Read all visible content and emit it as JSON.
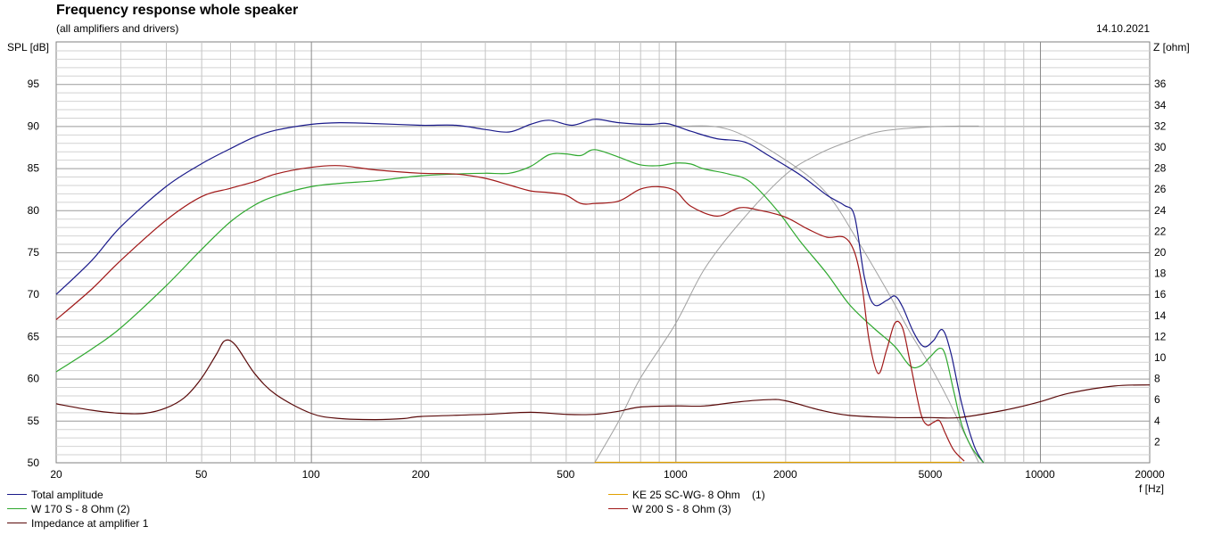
{
  "header": {
    "title": "Frequency response whole speaker",
    "subtitle": "(all amplifiers and drivers)",
    "date": "14.10.2021"
  },
  "colors": {
    "total": "#1a1a8a",
    "woofer170": "#2ea82e",
    "woofer200": "#a01818",
    "tweeter": "#e0a000",
    "impedance": "#5a0a0a",
    "reference": "#a0a0a0"
  },
  "chart_data": {
    "type": "line",
    "title": "Frequency response whole speaker",
    "subtitle": "(all amplifiers and drivers)",
    "xlabel": "f [Hz]",
    "ylabel": "SPL [dB]",
    "y2label": "Z [ohm]",
    "x_scale": "log",
    "xlim": [
      20,
      20000
    ],
    "ylim": [
      50,
      100
    ],
    "y2lim": [
      0,
      40
    ],
    "grid": true,
    "legend_position": "bottom",
    "x_ticks": [
      20,
      50,
      100,
      200,
      500,
      1000,
      2000,
      5000,
      10000,
      20000
    ],
    "y_ticks": [
      50,
      55,
      60,
      65,
      70,
      75,
      80,
      85,
      90,
      95
    ],
    "y2_ticks": [
      2,
      4,
      6,
      8,
      10,
      12,
      14,
      16,
      18,
      20,
      22,
      24,
      26,
      28,
      30,
      32,
      34,
      36
    ],
    "series": [
      {
        "name": "Total amplitude",
        "axis": "left",
        "color": "#1a1a8a",
        "points": [
          [
            20,
            70
          ],
          [
            25,
            74
          ],
          [
            30,
            78
          ],
          [
            40,
            82.8
          ],
          [
            50,
            85.5
          ],
          [
            60,
            87.3
          ],
          [
            70,
            88.7
          ],
          [
            80,
            89.5
          ],
          [
            100,
            90.2
          ],
          [
            120,
            90.4
          ],
          [
            150,
            90.3
          ],
          [
            200,
            90.1
          ],
          [
            250,
            90.1
          ],
          [
            300,
            89.6
          ],
          [
            350,
            89.3
          ],
          [
            400,
            90.2
          ],
          [
            450,
            90.7
          ],
          [
            520,
            90.1
          ],
          [
            600,
            90.8
          ],
          [
            700,
            90.4
          ],
          [
            850,
            90.2
          ],
          [
            950,
            90.3
          ],
          [
            1100,
            89.4
          ],
          [
            1300,
            88.5
          ],
          [
            1550,
            88.1
          ],
          [
            1800,
            86.5
          ],
          [
            2200,
            84.2
          ],
          [
            2600,
            81.8
          ],
          [
            2900,
            80.6
          ],
          [
            3100,
            79.3
          ],
          [
            3300,
            72
          ],
          [
            3500,
            68.8
          ],
          [
            3800,
            69.3
          ],
          [
            4000,
            69.8
          ],
          [
            4200,
            68.5
          ],
          [
            4500,
            65.5
          ],
          [
            4800,
            63.8
          ],
          [
            5100,
            64.5
          ],
          [
            5400,
            65.8
          ],
          [
            5700,
            63
          ],
          [
            6100,
            57
          ],
          [
            6600,
            52
          ],
          [
            7000,
            50
          ]
        ]
      },
      {
        "name": "W 170 S - 8 Ohm (2)",
        "axis": "left",
        "color": "#2ea82e",
        "points": [
          [
            20,
            60.8
          ],
          [
            25,
            63.5
          ],
          [
            30,
            66
          ],
          [
            40,
            71
          ],
          [
            50,
            75.3
          ],
          [
            60,
            78.6
          ],
          [
            70,
            80.6
          ],
          [
            80,
            81.7
          ],
          [
            100,
            82.8
          ],
          [
            120,
            83.2
          ],
          [
            150,
            83.5
          ],
          [
            200,
            84.1
          ],
          [
            250,
            84.3
          ],
          [
            300,
            84.4
          ],
          [
            350,
            84.4
          ],
          [
            400,
            85.2
          ],
          [
            450,
            86.6
          ],
          [
            500,
            86.7
          ],
          [
            550,
            86.5
          ],
          [
            600,
            87.2
          ],
          [
            700,
            86.3
          ],
          [
            800,
            85.4
          ],
          [
            900,
            85.3
          ],
          [
            1000,
            85.6
          ],
          [
            1100,
            85.5
          ],
          [
            1200,
            84.9
          ],
          [
            1400,
            84.3
          ],
          [
            1600,
            83.4
          ],
          [
            1900,
            80
          ],
          [
            2200,
            76.3
          ],
          [
            2600,
            72.5
          ],
          [
            3000,
            68.8
          ],
          [
            3500,
            66
          ],
          [
            4000,
            63.8
          ],
          [
            4400,
            61.5
          ],
          [
            4700,
            61.5
          ],
          [
            5000,
            62.6
          ],
          [
            5300,
            63.6
          ],
          [
            5500,
            62.8
          ],
          [
            5800,
            58.5
          ],
          [
            6100,
            54.5
          ],
          [
            6500,
            51.8
          ],
          [
            7000,
            50
          ]
        ]
      },
      {
        "name": "W 200 S - 8 Ohm (3)",
        "axis": "left",
        "color": "#a01818",
        "points": [
          [
            20,
            67
          ],
          [
            25,
            70.6
          ],
          [
            30,
            74
          ],
          [
            40,
            78.8
          ],
          [
            50,
            81.6
          ],
          [
            60,
            82.6
          ],
          [
            70,
            83.4
          ],
          [
            80,
            84.3
          ],
          [
            100,
            85.1
          ],
          [
            120,
            85.3
          ],
          [
            150,
            84.8
          ],
          [
            200,
            84.4
          ],
          [
            250,
            84.3
          ],
          [
            300,
            83.8
          ],
          [
            350,
            83
          ],
          [
            400,
            82.3
          ],
          [
            450,
            82.1
          ],
          [
            500,
            81.8
          ],
          [
            550,
            80.8
          ],
          [
            600,
            80.8
          ],
          [
            700,
            81.1
          ],
          [
            800,
            82.5
          ],
          [
            900,
            82.8
          ],
          [
            1000,
            82.3
          ],
          [
            1100,
            80.5
          ],
          [
            1300,
            79.3
          ],
          [
            1500,
            80.3
          ],
          [
            1700,
            80
          ],
          [
            2000,
            79.2
          ],
          [
            2300,
            77.8
          ],
          [
            2600,
            76.8
          ],
          [
            2900,
            76.8
          ],
          [
            3100,
            75
          ],
          [
            3250,
            71
          ],
          [
            3400,
            64.5
          ],
          [
            3600,
            60.6
          ],
          [
            3800,
            63.5
          ],
          [
            4000,
            66.6
          ],
          [
            4200,
            66
          ],
          [
            4400,
            62
          ],
          [
            4700,
            56
          ],
          [
            4900,
            54.5
          ],
          [
            5100,
            54.8
          ],
          [
            5300,
            55
          ],
          [
            5500,
            53.5
          ],
          [
            5800,
            51.5
          ],
          [
            6200,
            50.2
          ]
        ]
      },
      {
        "name": "KE 25 SC-WG- 8 Ohm    (1)",
        "axis": "left",
        "color": "#e0a000",
        "points": [
          [
            600,
            50.05
          ],
          [
            6100,
            50.05
          ]
        ]
      },
      {
        "name": "Impedance at amplifier 1",
        "axis": "right",
        "color": "#5a0a0a",
        "points": [
          [
            20,
            5.6
          ],
          [
            25,
            5
          ],
          [
            30,
            4.7
          ],
          [
            35,
            4.7
          ],
          [
            40,
            5.2
          ],
          [
            45,
            6.2
          ],
          [
            50,
            8
          ],
          [
            55,
            10.3
          ],
          [
            58,
            11.6
          ],
          [
            62,
            11.2
          ],
          [
            70,
            8.5
          ],
          [
            80,
            6.5
          ],
          [
            100,
            4.7
          ],
          [
            120,
            4.2
          ],
          [
            150,
            4.1
          ],
          [
            180,
            4.2
          ],
          [
            200,
            4.4
          ],
          [
            300,
            4.6
          ],
          [
            400,
            4.8
          ],
          [
            500,
            4.6
          ],
          [
            600,
            4.6
          ],
          [
            700,
            4.9
          ],
          [
            800,
            5.3
          ],
          [
            1000,
            5.4
          ],
          [
            1200,
            5.4
          ],
          [
            1500,
            5.8
          ],
          [
            1800,
            6
          ],
          [
            2000,
            5.9
          ],
          [
            2500,
            5
          ],
          [
            3000,
            4.5
          ],
          [
            4000,
            4.3
          ],
          [
            5000,
            4.3
          ],
          [
            6000,
            4.3
          ],
          [
            8000,
            5
          ],
          [
            10000,
            5.8
          ],
          [
            12000,
            6.6
          ],
          [
            16000,
            7.3
          ],
          [
            20000,
            7.4
          ]
        ]
      },
      {
        "axis": "left",
        "color": "#a0a0a0",
        "points": [
          [
            600,
            90
          ],
          [
            1000,
            90
          ],
          [
            1400,
            89.6
          ],
          [
            2000,
            86
          ],
          [
            2600,
            82
          ],
          [
            3200,
            76
          ],
          [
            3800,
            70.5
          ],
          [
            4400,
            65.5
          ],
          [
            5000,
            61.5
          ],
          [
            5600,
            57.5
          ],
          [
            6200,
            53.5
          ],
          [
            6800,
            50
          ]
        ]
      },
      {
        "axis": "left",
        "color": "#a0a0a0",
        "points": [
          [
            600,
            50
          ],
          [
            700,
            55
          ],
          [
            800,
            60
          ],
          [
            1000,
            66.5
          ],
          [
            1200,
            73
          ],
          [
            1500,
            78.5
          ],
          [
            2000,
            84.2
          ],
          [
            2500,
            86.8
          ],
          [
            3000,
            88.2
          ],
          [
            3500,
            89.2
          ],
          [
            4000,
            89.6
          ],
          [
            5000,
            89.9
          ],
          [
            6000,
            90
          ],
          [
            6800,
            90
          ]
        ]
      }
    ]
  },
  "legend": [
    {
      "label": "Total amplitude",
      "color": "#1a1a8a"
    },
    {
      "label": "W 170 S - 8 Ohm (2)",
      "color": "#2ea82e"
    },
    {
      "label": "Impedance at amplifier 1",
      "color": "#5a0a0a"
    },
    {
      "label": "KE 25 SC-WG- 8 Ohm    (1)",
      "color": "#e0a000"
    },
    {
      "label": "W 200 S - 8 Ohm (3)",
      "color": "#a01818"
    }
  ]
}
